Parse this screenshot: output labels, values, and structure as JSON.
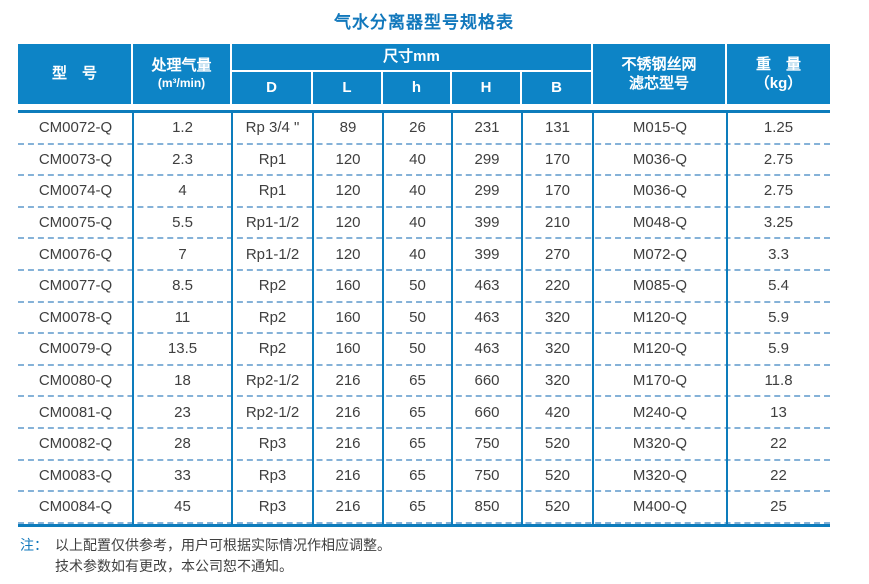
{
  "title": "气水分离器型号规格表",
  "colors": {
    "header_bg": "#0d84c6",
    "line": "#0d7cbc",
    "dashed": "#85b2d8",
    "title_text": "#1278bc",
    "body_text": "#3f3f3f"
  },
  "table": {
    "headers": {
      "model": "型　号",
      "capacity_line1": "处理气量",
      "capacity_line2": "(m³/min)",
      "dimensions": "尺寸mm",
      "dim_cols": [
        "D",
        "L",
        "h",
        "H",
        "B"
      ],
      "filter_line1": "不锈钢丝网",
      "filter_line2": "滤芯型号",
      "weight_line1": "重　量",
      "weight_line2": "（kg）"
    },
    "rows": [
      [
        "CM0072-Q",
        "1.2",
        "Rp 3/4 \"",
        "89",
        "26",
        "231",
        "131",
        "M015-Q",
        "1.25"
      ],
      [
        "CM0073-Q",
        "2.3",
        "Rp1",
        "120",
        "40",
        "299",
        "170",
        "M036-Q",
        "2.75"
      ],
      [
        "CM0074-Q",
        "4",
        "Rp1",
        "120",
        "40",
        "299",
        "170",
        "M036-Q",
        "2.75"
      ],
      [
        "CM0075-Q",
        "5.5",
        "Rp1-1/2",
        "120",
        "40",
        "399",
        "210",
        "M048-Q",
        "3.25"
      ],
      [
        "CM0076-Q",
        "7",
        "Rp1-1/2",
        "120",
        "40",
        "399",
        "270",
        "M072-Q",
        "3.3"
      ],
      [
        "CM0077-Q",
        "8.5",
        "Rp2",
        "160",
        "50",
        "463",
        "220",
        "M085-Q",
        "5.4"
      ],
      [
        "CM0078-Q",
        "11",
        "Rp2",
        "160",
        "50",
        "463",
        "320",
        "M120-Q",
        "5.9"
      ],
      [
        "CM0079-Q",
        "13.5",
        "Rp2",
        "160",
        "50",
        "463",
        "320",
        "M120-Q",
        "5.9"
      ],
      [
        "CM0080-Q",
        "18",
        "Rp2-1/2",
        "216",
        "65",
        "660",
        "320",
        "M170-Q",
        "11.8"
      ],
      [
        "CM0081-Q",
        "23",
        "Rp2-1/2",
        "216",
        "65",
        "660",
        "420",
        "M240-Q",
        "13"
      ],
      [
        "CM0082-Q",
        "28",
        "Rp3",
        "216",
        "65",
        "750",
        "520",
        "M320-Q",
        "22"
      ],
      [
        "CM0083-Q",
        "33",
        "Rp3",
        "216",
        "65",
        "750",
        "520",
        "M320-Q",
        "22"
      ],
      [
        "CM0084-Q",
        "45",
        "Rp3",
        "216",
        "65",
        "850",
        "520",
        "M400-Q",
        "25"
      ]
    ]
  },
  "notes": {
    "label": "注：",
    "line1": "以上配置仅供参考，用户可根据实际情况作相应调整。",
    "line2": "技术参数如有更改，本公司恕不通知。"
  }
}
